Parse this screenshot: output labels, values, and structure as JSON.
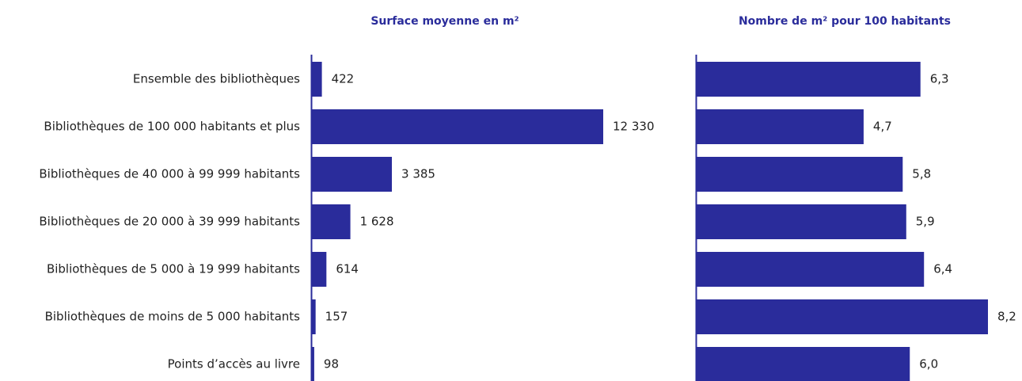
{
  "chart_data": [
    {
      "type": "bar",
      "orientation": "horizontal",
      "title": "Surface moyenne en m²",
      "categories": [
        "Ensemble des bibliothèques",
        "Bibliothèques de 100 000 habitants et plus",
        "Bibliothèques de 40 000 à 99 999 habitants",
        "Bibliothèques de 20 000 à 39 999 habitants",
        "Bibliothèques de 5 000 à 19 999 habitants",
        "Bibliothèques de moins de 5 000 habitants",
        "Points d’accès au livre"
      ],
      "values": [
        422,
        12330,
        3385,
        1628,
        614,
        157,
        98
      ],
      "value_labels": [
        "422",
        "12 330",
        "3 385",
        "1 628",
        "614",
        "157",
        "98"
      ],
      "color": "#2a2c9b",
      "xlim": [
        0,
        12330
      ]
    },
    {
      "type": "bar",
      "orientation": "horizontal",
      "title": "Nombre de m² pour 100 habitants",
      "values": [
        6.3,
        4.7,
        5.8,
        5.9,
        6.4,
        8.2,
        6.0
      ],
      "value_labels": [
        "6,3",
        "4,7",
        "5,8",
        "5,9",
        "6,4",
        "8,2",
        "6,0"
      ],
      "color": "#2a2c9b",
      "xlim": [
        0,
        8.2
      ]
    }
  ]
}
